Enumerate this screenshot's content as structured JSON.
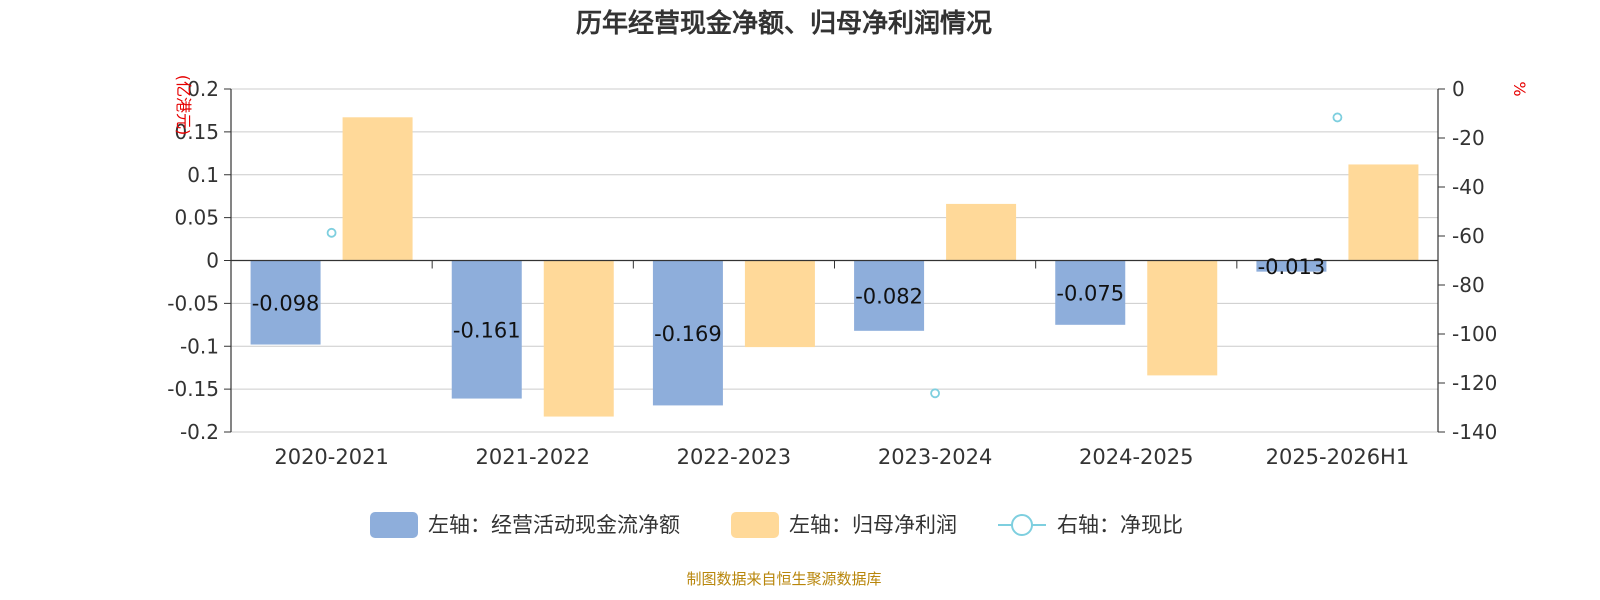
{
  "chart_data": {
    "type": "bar",
    "title": "历年经营现金净额、归母净利润情况",
    "categories": [
      "2020-2021",
      "2021-2022",
      "2022-2023",
      "2023-2024",
      "2024-2025",
      "2025-2026H1"
    ],
    "left_axis": {
      "label": "(亿港元)",
      "range": [
        -0.2,
        0.2
      ],
      "ticks": [
        "0.2",
        "0.15",
        "0.1",
        "0.05",
        "0",
        "-0.05",
        "-0.1",
        "-0.15",
        "-0.2"
      ]
    },
    "right_axis": {
      "label": "%",
      "range": [
        -140,
        0
      ],
      "ticks": [
        "0",
        "-20",
        "-40",
        "-60",
        "-80",
        "-100",
        "-120",
        "-140"
      ]
    },
    "series": [
      {
        "name": "左轴：经营活动现金流净额",
        "type": "bar",
        "axis": "left",
        "color": "#8eaedb",
        "values": [
          -0.098,
          -0.161,
          -0.169,
          -0.082,
          -0.075,
          -0.013
        ],
        "labels": [
          "-0.098",
          "-0.161",
          "-0.169",
          "-0.082",
          "-0.075",
          "-0.013"
        ]
      },
      {
        "name": "左轴：归母净利润",
        "type": "bar",
        "axis": "left",
        "color": "#ffd999",
        "values": [
          0.167,
          -0.182,
          -0.101,
          0.066,
          -0.134,
          0.112
        ]
      },
      {
        "name": "右轴：净现比",
        "type": "scatter",
        "axis": "right",
        "color": "#7ecfdf",
        "values": [
          -58.7,
          null,
          null,
          -124.2,
          null,
          -11.6
        ]
      }
    ],
    "source": "制图数据来自恒生聚源数据库"
  }
}
